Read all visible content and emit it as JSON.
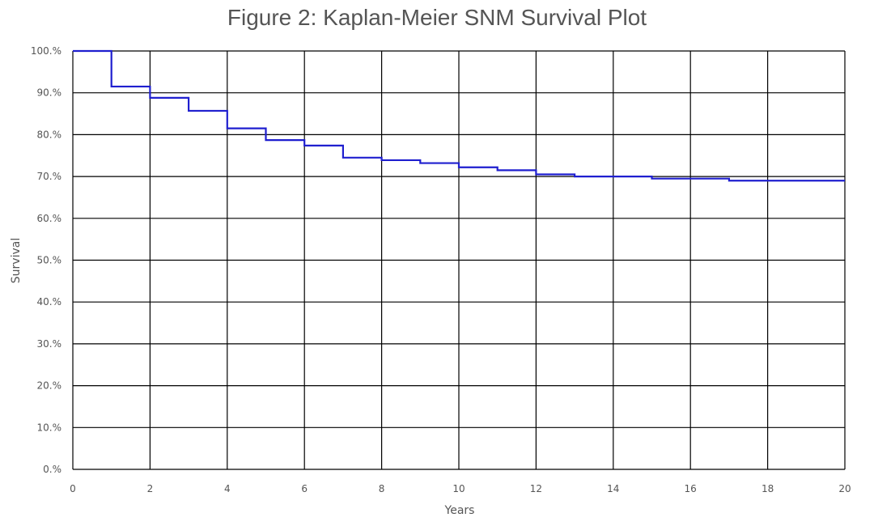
{
  "chart_data": {
    "type": "line",
    "title": "Figure 2: Kaplan-Meier SNM Survival Plot",
    "xlabel": "Years",
    "ylabel": "Survival",
    "xlim": [
      0,
      20
    ],
    "ylim": [
      0,
      100
    ],
    "x_ticks": [
      "0",
      "2",
      "4",
      "6",
      "8",
      "10",
      "12",
      "14",
      "16",
      "18",
      "20"
    ],
    "y_ticks": [
      "0.%",
      "10.%",
      "20.%",
      "30.%",
      "40.%",
      "50.%",
      "60.%",
      "70.%",
      "80.%",
      "90.%",
      "100.%"
    ],
    "grid": true,
    "line_color": "#1f1fcf",
    "series": [
      {
        "step": "post",
        "x": [
          0,
          1,
          2,
          3,
          4,
          5,
          6,
          7,
          8,
          9,
          10,
          11,
          12,
          13,
          15,
          17,
          20
        ],
        "y": [
          100,
          91.5,
          88.8,
          85.7,
          81.5,
          78.7,
          77.4,
          74.5,
          73.9,
          73.2,
          72.2,
          71.5,
          70.5,
          70.0,
          69.5,
          69.0,
          69.0
        ]
      }
    ]
  }
}
